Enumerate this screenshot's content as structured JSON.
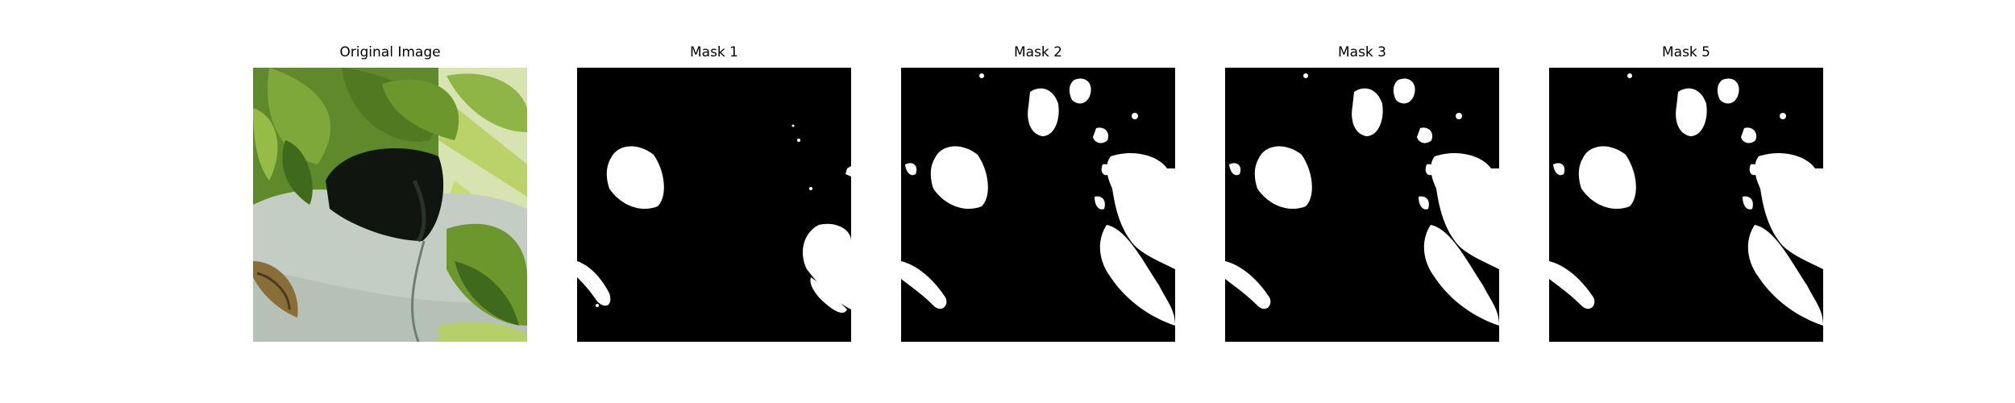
{
  "panels": [
    {
      "title": "Original Image",
      "kind": "photo"
    },
    {
      "title": "Mask 1",
      "kind": "mask"
    },
    {
      "title": "Mask 2",
      "kind": "mask"
    },
    {
      "title": "Mask 3",
      "kind": "mask"
    },
    {
      "title": "Mask 5",
      "kind": "mask"
    }
  ],
  "colors": {
    "mask_background": "#000000",
    "mask_foreground": "#ffffff",
    "leaf_dark": "#3f6a1c",
    "leaf_mid": "#7fa83a",
    "leaf_light": "#c6dc6e",
    "pot": "#c3cdc4",
    "pot_shadow": "#8e9c93",
    "hole": "#101510"
  }
}
